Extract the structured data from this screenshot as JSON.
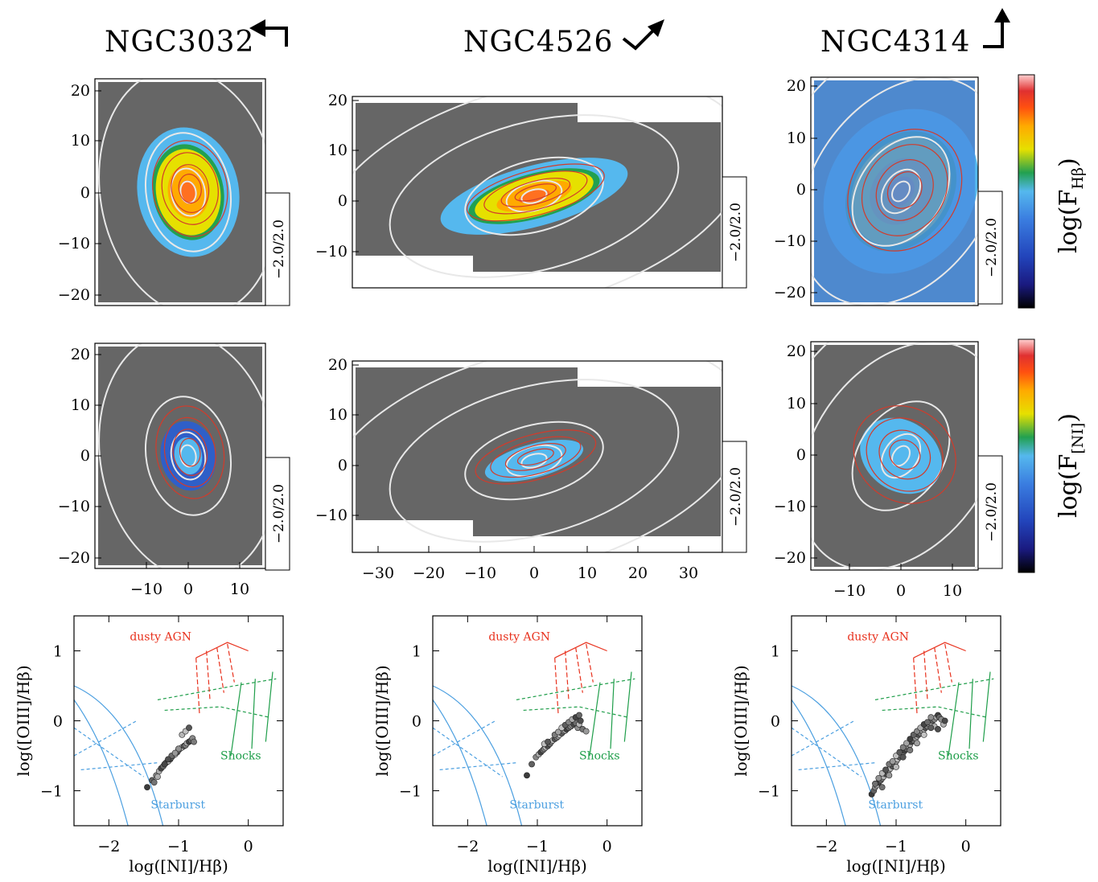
{
  "galaxies": [
    {
      "name": "NGC3032",
      "arrow": "up-left"
    },
    {
      "name": "NGC4526",
      "arrow": "up-right"
    },
    {
      "name": "NGC4314",
      "arrow": "up"
    }
  ],
  "colorbars": [
    {
      "label_base": "log(F",
      "label_sub": "Hβ",
      "label_end": ")"
    },
    {
      "label_base": "log(F",
      "label_sub": "[NI]",
      "label_end": ")"
    }
  ],
  "colormap": [
    "#000000",
    "#1a1a80",
    "#2244bb",
    "#3a7de0",
    "#55b8ee",
    "#22a050",
    "#e6e000",
    "#ffaa00",
    "#ff5010",
    "#e03030",
    "#ffd0d0"
  ],
  "range_label": "−2.0/2.0",
  "colors": {
    "background_map": "#666666",
    "contour_white": "#e8e8e8",
    "contour_red": "#d23b2b",
    "agn": "#e8321e",
    "shocks": "#1f9e4a",
    "starburst": "#4b9fe0"
  },
  "maps": {
    "ngc3032_yticks": [
      "20",
      "10",
      "0",
      "−10",
      "−20"
    ],
    "ngc3032_xticks": [
      "−10",
      "0",
      "10"
    ],
    "ngc4526_yticks": [
      "20",
      "10",
      "0",
      "−10"
    ],
    "ngc4526_xticks": [
      "−30",
      "−20",
      "−10",
      "0",
      "10",
      "20",
      "30"
    ],
    "ngc4314_yticks": [
      "20",
      "10",
      "0",
      "−10",
      "−20"
    ],
    "ngc4314_xticks": [
      "−10",
      "0",
      "10"
    ]
  },
  "chart_data": {
    "type": "scatter",
    "description_panels": "Diagnostic diagram log([OIII]/Hβ) vs log([NI]/Hβ) for three galaxies",
    "xlabel": "log([NI]/Hβ)",
    "ylabel": "log([OIII]/Hβ)",
    "xlim": [
      -2.5,
      0.5
    ],
    "ylim": [
      -1.5,
      1.5
    ],
    "xticks": [
      "−2",
      "−1",
      "0"
    ],
    "yticks": [
      "1",
      "0",
      "−1"
    ],
    "regions": {
      "agn": "dusty AGN",
      "shocks": "Shocks",
      "starburst": "Starburst"
    },
    "panels": [
      {
        "galaxy": "NGC3032",
        "x": [
          -1.45,
          -1.38,
          -1.32,
          -1.28,
          -1.25,
          -1.22,
          -1.18,
          -1.15,
          -1.12,
          -1.1,
          -1.08,
          -1.05,
          -1.02,
          -1.0,
          -0.98,
          -0.95,
          -0.92,
          -0.9,
          -0.88,
          -0.85,
          -0.82,
          -0.8,
          -1.3,
          -1.2,
          -1.1,
          -1.0,
          -0.95,
          -1.15,
          -1.35,
          -1.05,
          -0.9,
          -0.85,
          -0.78
        ],
        "y": [
          -0.95,
          -0.85,
          -0.78,
          -0.72,
          -0.68,
          -0.65,
          -0.6,
          -0.58,
          -0.55,
          -0.52,
          -0.5,
          -0.48,
          -0.45,
          -0.42,
          -0.4,
          -0.38,
          -0.36,
          -0.35,
          -0.32,
          -0.3,
          -0.28,
          -0.25,
          -0.8,
          -0.62,
          -0.5,
          -0.4,
          -0.2,
          -0.55,
          -0.88,
          -0.46,
          -0.15,
          -0.1,
          -0.3
        ]
      },
      {
        "galaxy": "NGC4526",
        "x": [
          -1.15,
          -1.08,
          -1.02,
          -0.98,
          -0.95,
          -0.92,
          -0.9,
          -0.88,
          -0.85,
          -0.82,
          -0.8,
          -0.78,
          -0.75,
          -0.72,
          -0.7,
          -0.68,
          -0.65,
          -0.62,
          -0.6,
          -0.58,
          -0.55,
          -0.52,
          -0.5,
          -0.48,
          -0.45,
          -0.42,
          -0.4,
          -0.38,
          -0.35,
          -0.3,
          -0.9,
          -0.85,
          -0.75,
          -0.7,
          -0.65,
          -0.6,
          -0.55,
          -0.5,
          -0.45,
          -0.4
        ],
        "y": [
          -0.78,
          -0.62,
          -0.52,
          -0.48,
          -0.45,
          -0.42,
          -0.4,
          -0.38,
          -0.36,
          -0.33,
          -0.3,
          -0.28,
          -0.26,
          -0.24,
          -0.22,
          -0.2,
          -0.18,
          -0.15,
          -0.14,
          -0.12,
          -0.1,
          -0.08,
          -0.06,
          -0.05,
          -0.03,
          -0.1,
          -0.05,
          0.0,
          -0.12,
          -0.15,
          -0.33,
          -0.3,
          -0.2,
          -0.16,
          -0.1,
          -0.06,
          -0.02,
          0.02,
          0.05,
          0.08
        ]
      },
      {
        "galaxy": "NGC4314",
        "x": [
          -1.35,
          -1.32,
          -1.3,
          -1.28,
          -1.25,
          -1.22,
          -1.2,
          -1.18,
          -1.15,
          -1.12,
          -1.1,
          -1.08,
          -1.05,
          -1.02,
          -1.0,
          -0.98,
          -0.95,
          -0.92,
          -0.9,
          -0.88,
          -0.85,
          -0.82,
          -0.8,
          -0.78,
          -0.75,
          -0.72,
          -0.7,
          -0.68,
          -0.65,
          -0.62,
          -0.6,
          -0.58,
          -0.55,
          -0.52,
          -0.5,
          -0.48,
          -0.45,
          -0.42,
          -0.4,
          -0.38,
          -0.35,
          -0.32,
          -0.3,
          -1.3,
          -1.25,
          -1.2,
          -1.15,
          -1.1,
          -1.05,
          -1.0,
          -0.95,
          -0.9,
          -0.85,
          -0.8,
          -0.75,
          -0.7,
          -0.65,
          -0.6,
          -0.55,
          -0.5,
          -0.45,
          -0.4,
          -1.2,
          -1.1,
          -1.0,
          -0.9,
          -0.8,
          -0.7,
          -0.6,
          -0.5
        ],
        "y": [
          -1.05,
          -1.0,
          -0.95,
          -0.92,
          -0.88,
          -0.85,
          -0.82,
          -0.8,
          -0.76,
          -0.72,
          -0.7,
          -0.68,
          -0.65,
          -0.62,
          -0.58,
          -0.55,
          -0.52,
          -0.5,
          -0.46,
          -0.43,
          -0.4,
          -0.37,
          -0.34,
          -0.3,
          -0.28,
          -0.25,
          -0.22,
          -0.2,
          -0.18,
          -0.15,
          -0.12,
          -0.1,
          -0.08,
          -0.05,
          -0.03,
          0.0,
          0.02,
          0.05,
          0.08,
          0.05,
          0.02,
          -0.05,
          0.0,
          -0.9,
          -0.82,
          -0.75,
          -0.7,
          -0.62,
          -0.58,
          -0.5,
          -0.45,
          -0.38,
          -0.32,
          -0.26,
          -0.2,
          -0.15,
          -0.1,
          -0.05,
          -0.02,
          0.05,
          -0.08,
          -0.12,
          -0.95,
          -0.78,
          -0.66,
          -0.52,
          -0.42,
          -0.32,
          -0.2,
          -0.1
        ]
      }
    ]
  }
}
